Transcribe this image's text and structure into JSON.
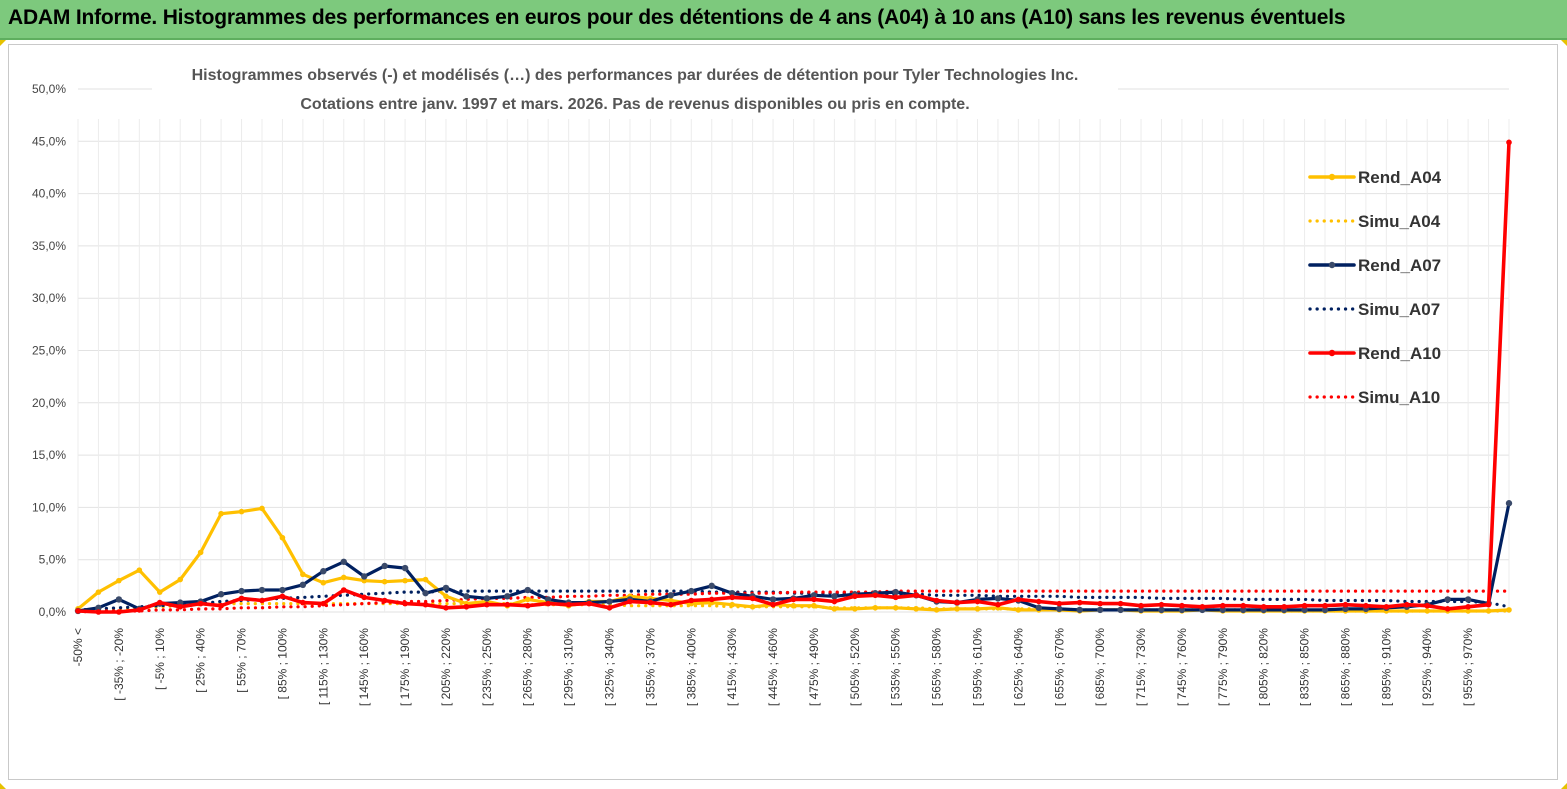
{
  "header": {
    "title": "ADAM Informe. Histogrammes des performances en euros pour des détentions de 4 ans (A04) à 10 ans (A10) sans les revenus éventuels"
  },
  "chart_data": {
    "type": "line",
    "subtitle_lines": [
      "Histogrammes observés (-) et modélisés (…) des performances par durées de détention pour Tyler Technologies Inc.",
      "Cotations entre janv. 1997 et mars. 2026. Pas de revenus disponibles ou pris en compte."
    ],
    "y_ticks": [
      "0,0%",
      "5,0%",
      "10,0%",
      "15,0%",
      "20,0%",
      "25,0%",
      "30,0%",
      "35,0%",
      "40,0%",
      "45,0%",
      "50,0%"
    ],
    "ylim": [
      0,
      50
    ],
    "grid": true,
    "legend_position": "right",
    "x_tick_labels": [
      "-50% <",
      "[ -35% ; -20%",
      "[ -5% ; 10%",
      "[ 25% ; 40%",
      "[ 55% ; 70%",
      "[ 85% ; 100%",
      "[ 115% ; 130%",
      "[ 145% ; 160%",
      "[ 175% ; 190%",
      "[ 205% ; 220%",
      "[ 235% ; 250%",
      "[ 265% ; 280%",
      "[ 295% ; 310%",
      "[ 325% ; 340%",
      "[ 355% ; 370%",
      "[ 385% ; 400%",
      "[ 415% ; 430%",
      "[ 445% ; 460%",
      "[ 475% ; 490%",
      "[ 505% ; 520%",
      "[ 535% ; 550%",
      "[ 565% ; 580%",
      "[ 595% ; 610%",
      "[ 625% ; 640%",
      "[ 655% ; 670%",
      "[ 685% ; 700%",
      "[ 715% ; 730%",
      "[ 745% ; 760%",
      "[ 775% ; 790%",
      "[ 805% ; 820%",
      "[ 835% ; 850%",
      "[ 865% ; 880%",
      "[ 895% ; 910%",
      "[ 925% ; 940%",
      "[ 955% ; 970%"
    ],
    "n_categories": 71,
    "series": [
      {
        "name": "Rend_A04",
        "style": "solid",
        "color": "#FFC000",
        "values": [
          0.3,
          1.9,
          3.0,
          4.0,
          1.9,
          3.1,
          5.7,
          9.4,
          9.6,
          9.9,
          7.1,
          3.6,
          2.8,
          3.3,
          3.0,
          2.9,
          3.0,
          3.1,
          1.5,
          0.8,
          1.0,
          0.6,
          1.2,
          0.9,
          0.6,
          1.0,
          1.0,
          1.5,
          1.3,
          1.1,
          0.8,
          0.9,
          0.7,
          0.5,
          0.7,
          0.6,
          0.6,
          0.3,
          0.3,
          0.4,
          0.4,
          0.3,
          0.2,
          0.3,
          0.3,
          0.4,
          0.2,
          0.2,
          0.2,
          0.1,
          0.2,
          0.2,
          0.1,
          0.1,
          0.1,
          0.2,
          0.1,
          0.1,
          0.1,
          0.1,
          0.1,
          0.1,
          0.1,
          0.1,
          0.1,
          0.1,
          0.1,
          0.1,
          0.1,
          0.1,
          0.2
        ]
      },
      {
        "name": "Simu_A04",
        "style": "dotted",
        "color": "#FFC000",
        "values": [
          0.1,
          0.1,
          0.2,
          0.4,
          0.5,
          0.6,
          0.7,
          0.8,
          0.8,
          0.8,
          0.8,
          0.8,
          0.8,
          0.8,
          0.8,
          0.8,
          0.8,
          0.8,
          0.8,
          0.8,
          0.8,
          0.8,
          0.7,
          0.7,
          0.7,
          0.7,
          0.7,
          0.6,
          0.6,
          0.6,
          0.6,
          0.6,
          0.5,
          0.5,
          0.5,
          0.5,
          0.5,
          0.4,
          0.4,
          0.4,
          0.4,
          0.4,
          0.3,
          0.3,
          0.3,
          0.3,
          0.3,
          0.3,
          0.3,
          0.2,
          0.2,
          0.2,
          0.2,
          0.2,
          0.2,
          0.2,
          0.2,
          0.2,
          0.2,
          0.1,
          0.1,
          0.1,
          0.1,
          0.1,
          0.1,
          0.1,
          0.1,
          0.1,
          0.1,
          0.1,
          0.1
        ]
      },
      {
        "name": "Rend_A07",
        "style": "solid",
        "color": "#002060",
        "values": [
          0.1,
          0.4,
          1.2,
          0.3,
          0.8,
          0.9,
          1.0,
          1.7,
          2.0,
          2.1,
          2.1,
          2.6,
          3.9,
          4.8,
          3.4,
          4.4,
          4.2,
          1.8,
          2.3,
          1.5,
          1.3,
          1.5,
          2.1,
          1.2,
          0.9,
          0.9,
          1.0,
          1.2,
          1.0,
          1.6,
          2.0,
          2.5,
          1.8,
          1.5,
          1.2,
          1.3,
          1.6,
          1.5,
          1.7,
          1.8,
          1.9,
          1.6,
          1.0,
          0.9,
          1.2,
          1.3,
          1.1,
          0.4,
          0.3,
          0.2,
          0.2,
          0.2,
          0.2,
          0.2,
          0.2,
          0.2,
          0.2,
          0.2,
          0.2,
          0.2,
          0.2,
          0.2,
          0.3,
          0.3,
          0.4,
          0.5,
          0.7,
          1.2,
          1.2,
          0.8,
          10.4
        ]
      },
      {
        "name": "Simu_A07",
        "style": "dotted",
        "color": "#002060",
        "values": [
          0.2,
          0.3,
          0.4,
          0.5,
          0.6,
          0.7,
          0.8,
          1.0,
          1.1,
          1.2,
          1.3,
          1.4,
          1.5,
          1.6,
          1.7,
          1.8,
          1.9,
          1.9,
          2.0,
          2.0,
          2.0,
          2.0,
          2.0,
          2.0,
          2.0,
          2.0,
          2.0,
          2.0,
          2.0,
          2.0,
          2.0,
          1.9,
          1.9,
          1.9,
          1.9,
          1.8,
          1.8,
          1.8,
          1.8,
          1.7,
          1.7,
          1.7,
          1.6,
          1.6,
          1.6,
          1.5,
          1.5,
          1.5,
          1.5,
          1.4,
          1.4,
          1.4,
          1.4,
          1.3,
          1.3,
          1.3,
          1.3,
          1.2,
          1.2,
          1.2,
          1.2,
          1.1,
          1.1,
          1.1,
          1.1,
          1.0,
          1.0,
          1.0,
          1.0,
          0.9,
          0.5
        ]
      },
      {
        "name": "Rend_A10",
        "style": "solid",
        "color": "#FF0000",
        "values": [
          0.1,
          0.0,
          0.0,
          0.2,
          0.9,
          0.5,
          0.8,
          0.6,
          1.3,
          1.1,
          1.5,
          0.9,
          0.8,
          2.1,
          1.4,
          1.1,
          0.8,
          0.7,
          0.4,
          0.5,
          0.7,
          0.7,
          0.6,
          0.8,
          0.7,
          0.8,
          0.4,
          1.0,
          0.9,
          0.7,
          1.1,
          1.2,
          1.4,
          1.3,
          0.7,
          1.2,
          1.2,
          1.0,
          1.5,
          1.6,
          1.4,
          1.6,
          1.1,
          0.9,
          1.0,
          0.7,
          1.2,
          1.0,
          0.8,
          0.9,
          0.8,
          0.8,
          0.6,
          0.7,
          0.6,
          0.5,
          0.6,
          0.6,
          0.5,
          0.5,
          0.6,
          0.6,
          0.7,
          0.6,
          0.5,
          0.7,
          0.6,
          0.3,
          0.5,
          0.7,
          44.9
        ]
      },
      {
        "name": "Simu_A10",
        "style": "dotted",
        "color": "#FF0000",
        "values": [
          0.0,
          0.1,
          0.1,
          0.1,
          0.2,
          0.2,
          0.3,
          0.3,
          0.4,
          0.4,
          0.5,
          0.5,
          0.6,
          0.7,
          0.8,
          0.9,
          1.0,
          1.0,
          1.1,
          1.2,
          1.3,
          1.3,
          1.4,
          1.4,
          1.5,
          1.5,
          1.6,
          1.6,
          1.7,
          1.7,
          1.7,
          1.8,
          1.8,
          1.8,
          1.8,
          1.9,
          1.9,
          1.9,
          1.9,
          1.9,
          2.0,
          2.0,
          2.0,
          2.0,
          2.0,
          2.0,
          2.0,
          2.0,
          2.0,
          2.0,
          2.0,
          2.0,
          2.0,
          2.0,
          2.0,
          2.0,
          2.0,
          2.0,
          2.0,
          2.0,
          2.0,
          2.0,
          2.0,
          2.0,
          2.0,
          2.0,
          2.0,
          2.0,
          2.0,
          2.0,
          2.0
        ]
      }
    ]
  }
}
